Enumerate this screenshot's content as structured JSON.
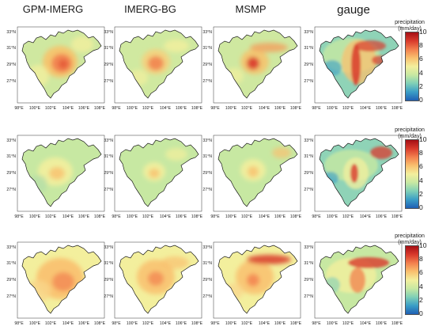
{
  "columns": [
    "GPM-IMERG",
    "IMERG-BG",
    "MSMP",
    "gauge"
  ],
  "rows": 3,
  "axes": {
    "x_ticks": [
      "98°E",
      "100°E",
      "102°E",
      "104°E",
      "106°E",
      "108°E"
    ],
    "y_ticks": [
      "33°N",
      "31°N",
      "29°N",
      "27°N"
    ]
  },
  "colorbar": {
    "title_line1": "precipitation",
    "title_line2": "(mm/day)",
    "ticks": [
      "10",
      "8",
      "6",
      "4",
      "2",
      "0"
    ],
    "range": [
      0,
      10
    ],
    "colors": [
      "#1f5fb4",
      "#3a9ec6",
      "#7fcfb7",
      "#c7e8a2",
      "#f3ef9d",
      "#f9c06f",
      "#f2804e",
      "#d93a2c",
      "#a50f15"
    ]
  },
  "colors": {
    "boundary": "#1a1a1a",
    "frame": "#333333"
  }
}
